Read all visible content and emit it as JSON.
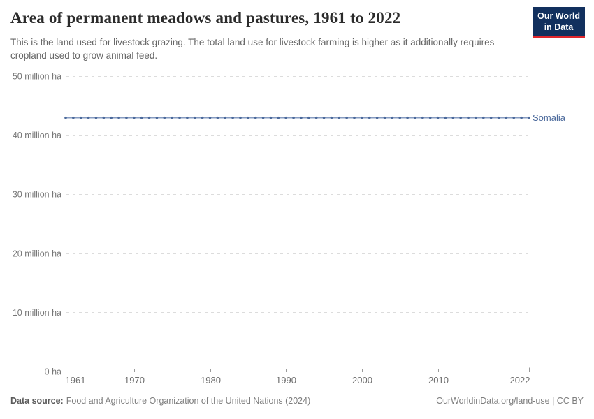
{
  "header": {
    "title": "Area of permanent meadows and pastures, 1961 to 2022",
    "subtitle": "This is the land used for livestock grazing. The total land use for livestock farming is higher as it additionally requires cropland used to grow animal feed.",
    "logo": {
      "line1": "Our World",
      "line2": "in Data",
      "bg_color": "#12305e",
      "accent_color": "#e0262c"
    }
  },
  "chart_data": {
    "type": "line",
    "title": "Area of permanent meadows and pastures, 1961 to 2022",
    "xlabel": "",
    "ylabel": "",
    "unit": "million ha",
    "xlim": [
      1961,
      2022
    ],
    "ylim": [
      0,
      50
    ],
    "grid": "dashed horizontal gridlines",
    "legend_position": "end-of-line label",
    "x_ticks": [
      1961,
      1970,
      1980,
      1990,
      2000,
      2010,
      2022
    ],
    "y_ticks": [
      {
        "value": 0,
        "label": "0 ha"
      },
      {
        "value": 10,
        "label": "10 million ha"
      },
      {
        "value": 20,
        "label": "20 million ha"
      },
      {
        "value": 30,
        "label": "30 million ha"
      },
      {
        "value": 40,
        "label": "40 million ha"
      },
      {
        "value": 50,
        "label": "50 million ha"
      }
    ],
    "series": [
      {
        "name": "Somalia",
        "marker_color": "#4c6a9c",
        "line_color": "#879cc1",
        "x_start": 1961,
        "x_end": 2022,
        "x_step": 1,
        "n_points": 62,
        "value_million_ha": 42.95,
        "constant": true,
        "note": "flat line - same value every year from 1961 through 2022"
      }
    ]
  },
  "footer": {
    "datasource_label": "Data source:",
    "datasource_text": "Food and Agriculture Organization of the United Nations (2024)",
    "link_text": "OurWorldinData.org/land-use",
    "separator": " | ",
    "license": "CC BY"
  }
}
